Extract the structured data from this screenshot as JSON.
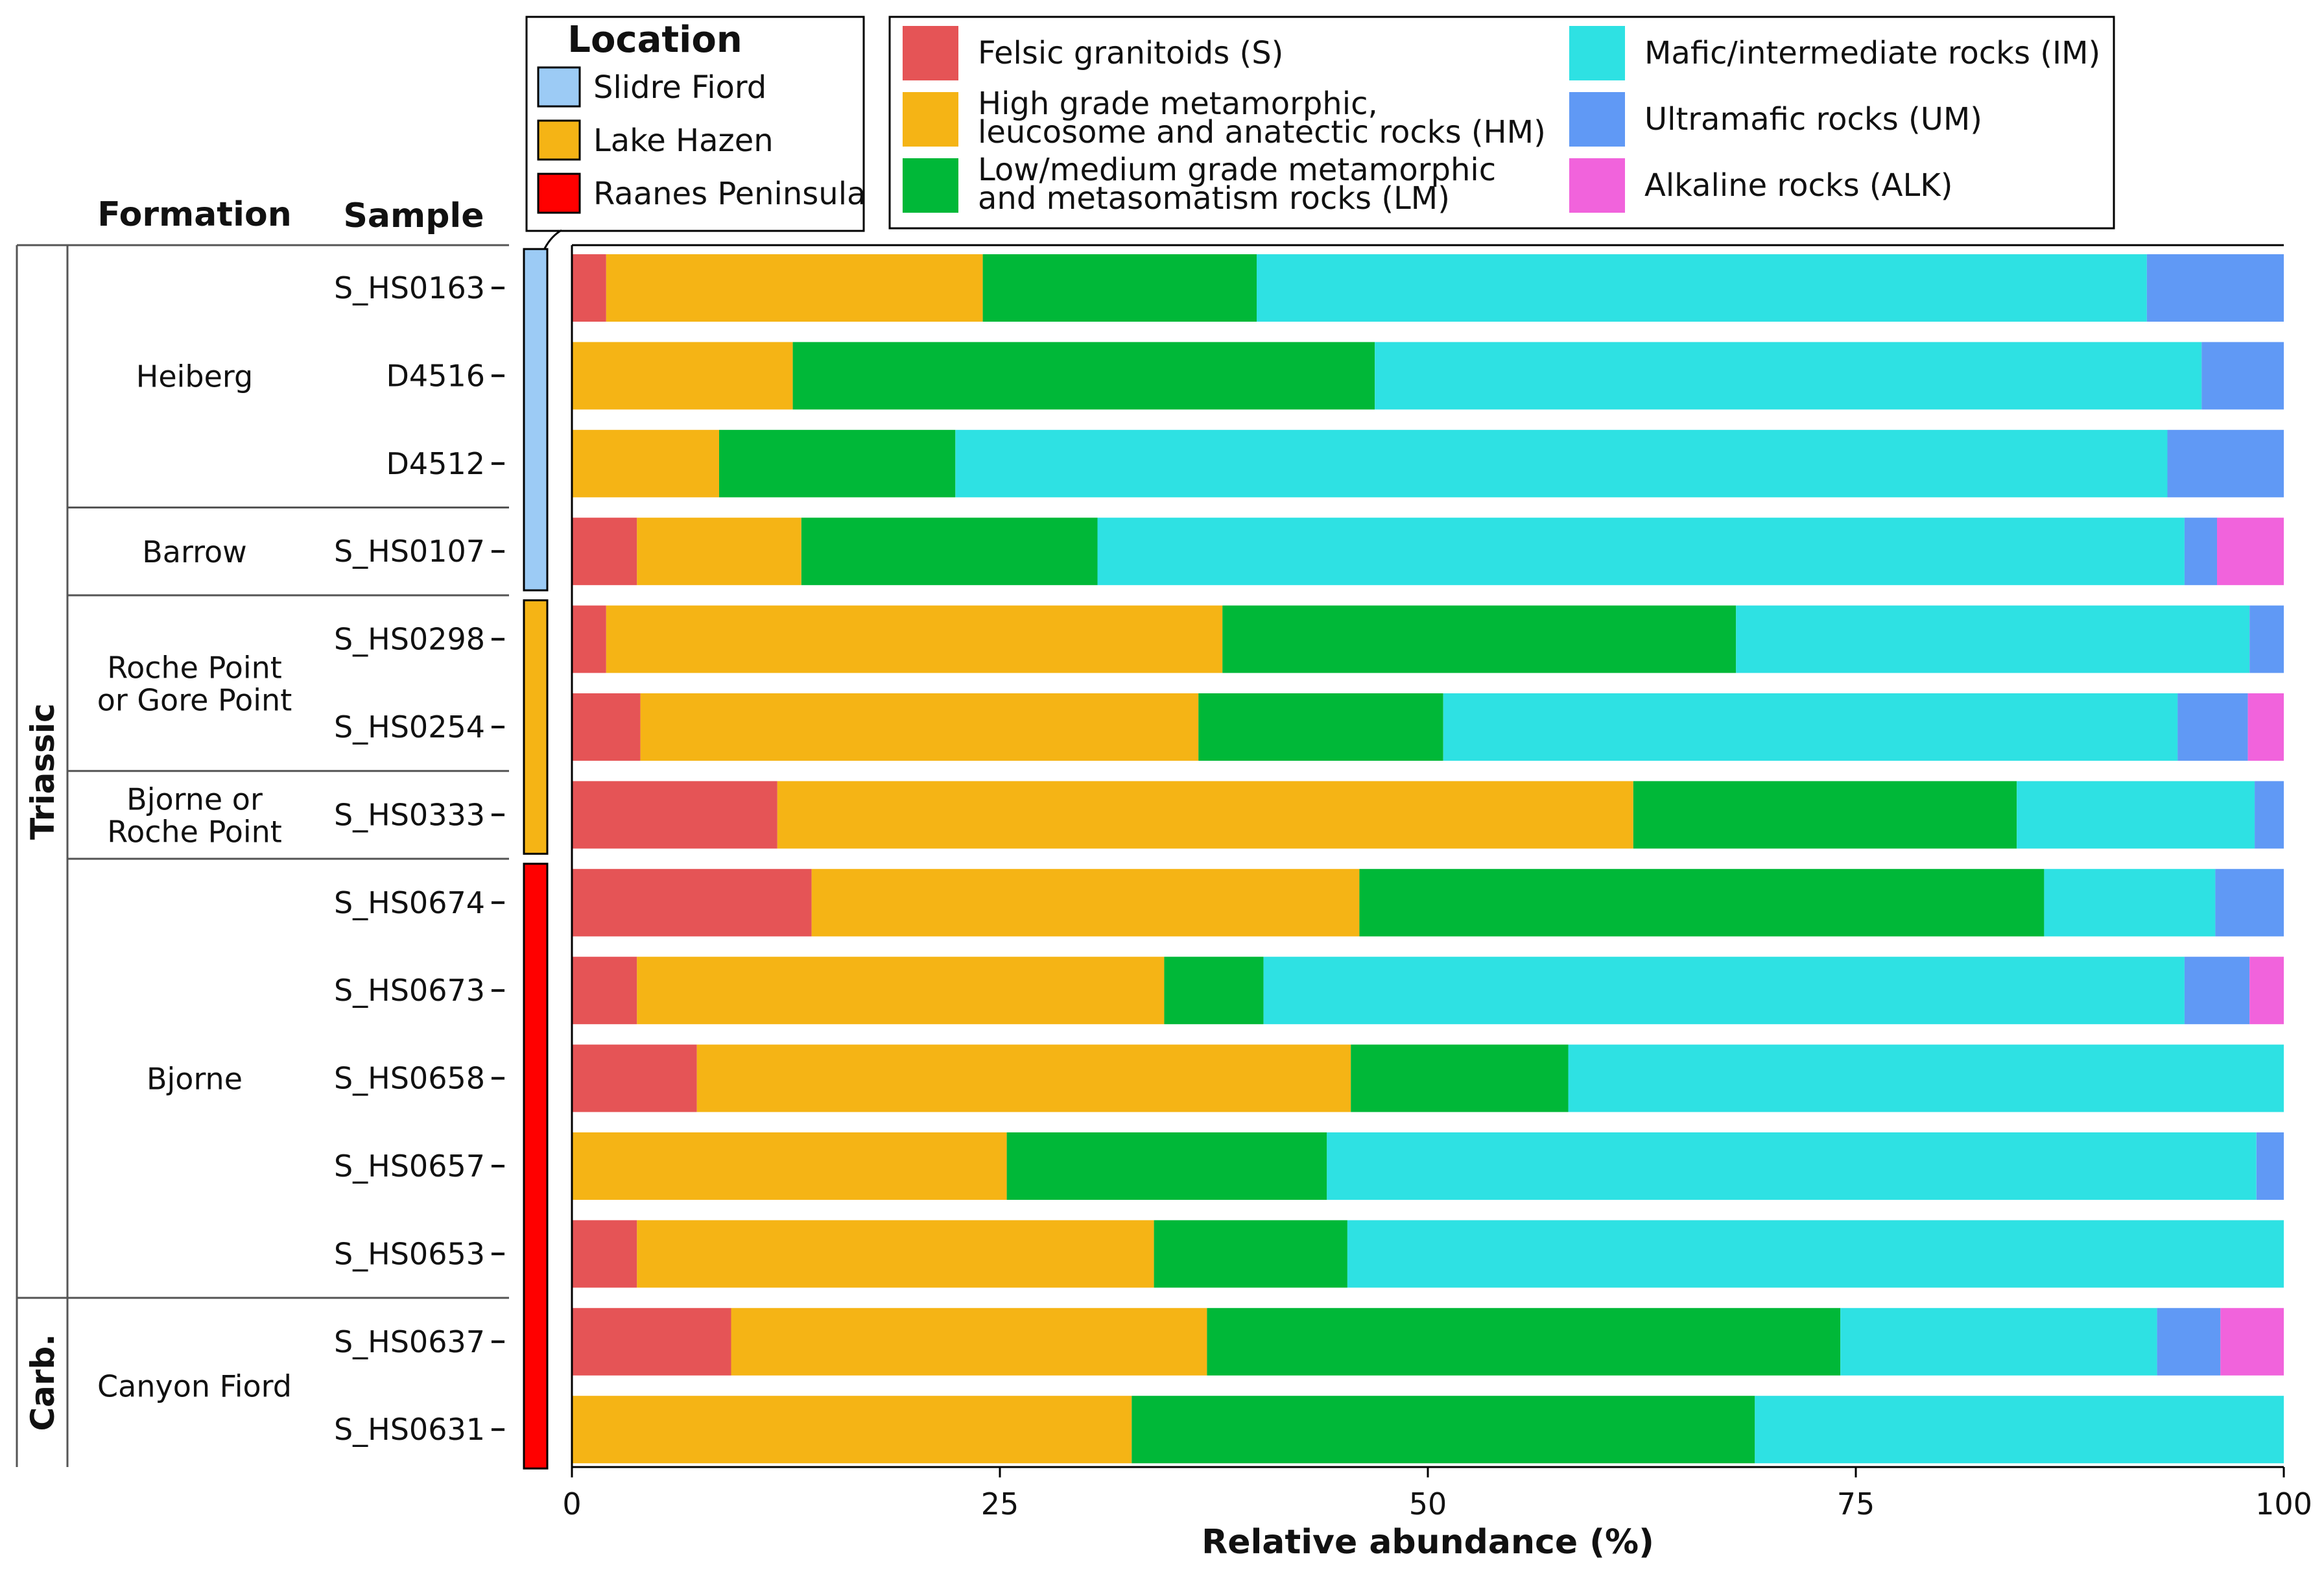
{
  "chart_data": {
    "type": "bar",
    "orientation": "horizontal",
    "stacked": true,
    "xlabel": "Relative abundance (%)",
    "xlim": [
      0,
      100
    ],
    "xticks": [
      "0",
      "25",
      "50",
      "75",
      "100"
    ],
    "header_formation": "Formation",
    "header_sample": "Sample",
    "legend_location_title": "Location",
    "locations": [
      {
        "name": "Slidre Fiord",
        "color": "#9ccbf5"
      },
      {
        "name": "Lake Hazen",
        "color": "#f5b415"
      },
      {
        "name": "Raanes Peninsula",
        "color": "#ff0000"
      }
    ],
    "series": [
      {
        "name": "Felsic granitoids (S)",
        "color": "#e55456",
        "values": [
          2,
          0,
          0,
          3.8,
          2,
          4,
          12,
          14,
          3.8,
          7.3,
          0,
          3.8,
          9.3,
          0
        ]
      },
      {
        "name": "High grade metamorphic, leucosome and anatectic rocks (HM)",
        "color": "#f5b415",
        "values": [
          22,
          12.9,
          8.6,
          9.6,
          36,
          32.6,
          50,
          32,
          30.8,
          38.2,
          25.4,
          30.2,
          27.8,
          32.7
        ]
      },
      {
        "name": "Low/medium grade metamorphic and metasomatism rocks (LM)",
        "color": "#00b838",
        "values": [
          16,
          34,
          13.8,
          17.3,
          30,
          14.3,
          22.4,
          40,
          5.8,
          12.7,
          18.7,
          11.3,
          37,
          36.4
        ]
      },
      {
        "name": "Mafic/intermediate rocks (IM)",
        "color": "#2ee1e3",
        "values": [
          52,
          48.3,
          70.8,
          63.5,
          30,
          42.9,
          13.9,
          10,
          53.8,
          41.8,
          54.3,
          54.7,
          18.5,
          30.9
        ]
      },
      {
        "name": "Ultramafic rocks (UM)",
        "color": "#6099f5",
        "values": [
          8,
          4.8,
          6.8,
          1.9,
          2,
          4.1,
          1.7,
          4,
          3.8,
          0,
          1.6,
          0,
          3.7,
          0
        ]
      },
      {
        "name": "Alkaline rocks (ALK)",
        "color": "#f163dc",
        "values": [
          0,
          0,
          0,
          3.9,
          0,
          2.1,
          0,
          0,
          2,
          0,
          0,
          0,
          3.7,
          0
        ]
      }
    ],
    "samples": [
      {
        "label": "S_HS0163",
        "location": "Slidre Fiord"
      },
      {
        "label": "D4516",
        "location": "Slidre Fiord"
      },
      {
        "label": "D4512",
        "location": "Slidre Fiord"
      },
      {
        "label": "S_HS0107",
        "location": "Slidre Fiord"
      },
      {
        "label": "S_HS0298",
        "location": "Lake Hazen"
      },
      {
        "label": "S_HS0254",
        "location": "Lake Hazen"
      },
      {
        "label": "S_HS0333",
        "location": "Lake Hazen"
      },
      {
        "label": "S_HS0674",
        "location": "Raanes Peninsula"
      },
      {
        "label": "S_HS0673",
        "location": "Raanes Peninsula"
      },
      {
        "label": "S_HS0658",
        "location": "Raanes Peninsula"
      },
      {
        "label": "S_HS0657",
        "location": "Raanes Peninsula"
      },
      {
        "label": "S_HS0653",
        "location": "Raanes Peninsula"
      },
      {
        "label": "S_HS0637",
        "location": "Raanes Peninsula"
      },
      {
        "label": "S_HS0631",
        "location": "Raanes Peninsula"
      }
    ],
    "formations": [
      {
        "lines": [
          "Heiberg"
        ],
        "first": 0,
        "last": 2
      },
      {
        "lines": [
          "Barrow"
        ],
        "first": 3,
        "last": 3
      },
      {
        "lines": [
          "Roche Point",
          "or Gore Point"
        ],
        "first": 4,
        "last": 5
      },
      {
        "lines": [
          "Bjorne or",
          "Roche Point"
        ],
        "first": 6,
        "last": 6
      },
      {
        "lines": [
          "Bjorne"
        ],
        "first": 7,
        "last": 11
      },
      {
        "lines": [
          "Canyon Fiord"
        ],
        "first": 12,
        "last": 13
      }
    ],
    "periods": [
      {
        "name": "Triassic",
        "first": 0,
        "last": 11
      },
      {
        "name": "Carb.",
        "first": 12,
        "last": 13
      }
    ]
  }
}
